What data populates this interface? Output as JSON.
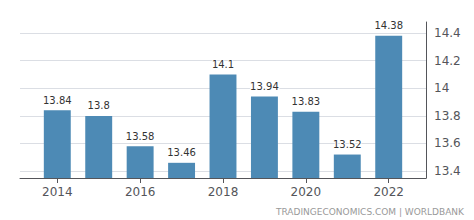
{
  "chart_data": {
    "type": "bar",
    "x": [
      2014,
      2015,
      2016,
      2017,
      2018,
      2019,
      2020,
      2021,
      2022
    ],
    "values": [
      13.84,
      13.8,
      13.58,
      13.46,
      14.1,
      13.94,
      13.83,
      13.52,
      14.38
    ],
    "color": "#4d8ab5",
    "xlim": [
      2013.1,
      2022.9
    ],
    "xticks": [
      2014,
      2016,
      2018,
      2020,
      2022
    ],
    "ylim": [
      13.35,
      14.48
    ],
    "yticks": [
      13.4,
      13.6,
      13.8,
      14,
      14.2,
      14.4
    ],
    "grid": true,
    "data_labels": true,
    "annotation": "TRADINGECONOMICS.COM | WORLDBANK"
  }
}
